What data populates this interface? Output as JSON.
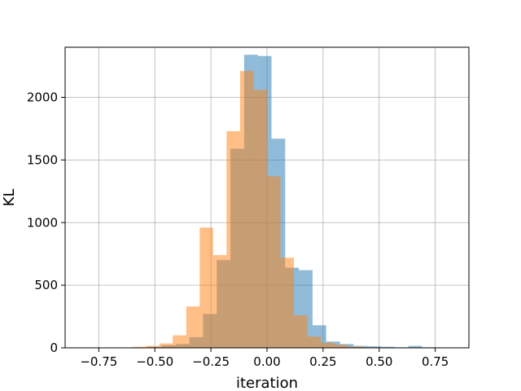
{
  "chart_data": {
    "type": "histogram",
    "xlabel": "iteration",
    "ylabel": "KL",
    "xlim": [
      -0.9,
      0.9
    ],
    "ylim": [
      0,
      2400
    ],
    "x_ticks": [
      -0.75,
      -0.5,
      -0.25,
      0.0,
      0.25,
      0.5,
      0.75
    ],
    "x_tick_labels": [
      "−0.75",
      "−0.50",
      "−0.25",
      "0.00",
      "0.25",
      "0.50",
      "0.75"
    ],
    "y_ticks": [
      0,
      500,
      1000,
      1500,
      2000
    ],
    "y_tick_labels": [
      "0",
      "500",
      "1000",
      "1500",
      "2000"
    ],
    "grid": true,
    "legend": "none",
    "series": [
      {
        "color": "#1f77b4",
        "opacity": 0.5,
        "bins": [
          [
            -0.59,
            -0.529,
            3
          ],
          [
            -0.529,
            -0.468,
            8
          ],
          [
            -0.468,
            -0.407,
            20
          ],
          [
            -0.407,
            -0.346,
            30
          ],
          [
            -0.346,
            -0.285,
            85
          ],
          [
            -0.285,
            -0.224,
            270
          ],
          [
            -0.224,
            -0.163,
            700
          ],
          [
            -0.163,
            -0.102,
            1590
          ],
          [
            -0.102,
            -0.041,
            2340
          ],
          [
            -0.041,
            0.02,
            2330
          ],
          [
            0.02,
            0.081,
            1670
          ],
          [
            0.081,
            0.142,
            640
          ],
          [
            0.142,
            0.203,
            620
          ],
          [
            0.203,
            0.264,
            180
          ],
          [
            0.264,
            0.325,
            50
          ],
          [
            0.325,
            0.386,
            30
          ],
          [
            0.386,
            0.447,
            15
          ],
          [
            0.447,
            0.508,
            12
          ],
          [
            0.508,
            0.569,
            8
          ],
          [
            0.569,
            0.63,
            4
          ],
          [
            0.63,
            0.691,
            15
          ],
          [
            0.691,
            0.752,
            4
          ],
          [
            0.752,
            0.813,
            3
          ],
          [
            0.813,
            0.874,
            2
          ]
        ]
      },
      {
        "color": "#ff7f0e",
        "opacity": 0.5,
        "bins": [
          [
            -0.66,
            -0.6,
            2
          ],
          [
            -0.6,
            -0.54,
            8
          ],
          [
            -0.54,
            -0.48,
            15
          ],
          [
            -0.48,
            -0.42,
            35
          ],
          [
            -0.42,
            -0.36,
            100
          ],
          [
            -0.36,
            -0.3,
            330
          ],
          [
            -0.3,
            -0.24,
            960
          ],
          [
            -0.24,
            -0.18,
            740
          ],
          [
            -0.18,
            -0.12,
            1730
          ],
          [
            -0.12,
            -0.06,
            2210
          ],
          [
            -0.06,
            0.0,
            2060
          ],
          [
            0.0,
            0.06,
            1370
          ],
          [
            0.06,
            0.12,
            720
          ],
          [
            0.12,
            0.18,
            260
          ],
          [
            0.18,
            0.24,
            90
          ],
          [
            0.24,
            0.3,
            40
          ],
          [
            0.3,
            0.36,
            25
          ],
          [
            0.36,
            0.42,
            10
          ],
          [
            0.42,
            0.48,
            6
          ]
        ]
      }
    ]
  }
}
